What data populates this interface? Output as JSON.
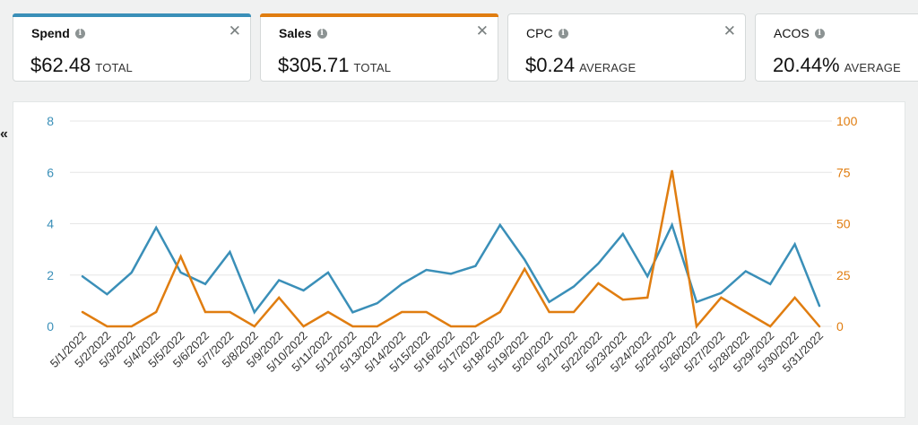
{
  "cards": [
    {
      "label": "Spend",
      "value": "$62.48",
      "qualifier": "TOTAL",
      "accent": "#3a8fb8",
      "bold": true,
      "closable": true
    },
    {
      "label": "Sales",
      "value": "$305.71",
      "qualifier": "TOTAL",
      "accent": "#e07d10",
      "bold": true,
      "closable": true
    },
    {
      "label": "CPC",
      "value": "$0.24",
      "qualifier": "AVERAGE",
      "accent": "",
      "bold": false,
      "closable": true
    },
    {
      "label": "ACOS",
      "value": "20.44%",
      "qualifier": "AVERAGE",
      "accent": "",
      "bold": false,
      "closable": false
    }
  ],
  "info_icon": "info-circle-icon",
  "close_icon": "close-x-icon",
  "collapse_icon": "double-chevron-left-icon",
  "collapse_glyph": "«",
  "chart_data": {
    "type": "line",
    "categories": [
      "5/1/2022",
      "5/2/2022",
      "5/3/2022",
      "5/4/2022",
      "5/5/2022",
      "5/6/2022",
      "5/7/2022",
      "5/8/2022",
      "5/9/2022",
      "5/10/2022",
      "5/11/2022",
      "5/12/2022",
      "5/13/2022",
      "5/14/2022",
      "5/15/2022",
      "5/16/2022",
      "5/17/2022",
      "5/18/2022",
      "5/19/2022",
      "5/20/2022",
      "5/21/2022",
      "5/22/2022",
      "5/23/2022",
      "5/24/2022",
      "5/25/2022",
      "5/26/2022",
      "5/27/2022",
      "5/28/2022",
      "5/29/2022",
      "5/30/2022",
      "5/31/2022"
    ],
    "series": [
      {
        "name": "Spend",
        "axis": "left",
        "color": "#3a8fb8",
        "values": [
          1.95,
          1.25,
          2.1,
          3.85,
          2.1,
          1.65,
          2.9,
          0.55,
          1.8,
          1.4,
          2.1,
          0.55,
          0.9,
          1.65,
          2.2,
          2.05,
          2.35,
          3.95,
          2.6,
          0.95,
          1.55,
          2.45,
          3.6,
          1.95,
          3.95,
          0.95,
          1.3,
          2.15,
          1.65,
          3.2,
          0.8
        ]
      },
      {
        "name": "Sales",
        "axis": "right",
        "color": "#e07d10",
        "values": [
          7,
          0,
          0,
          7,
          34,
          7,
          7,
          0,
          14,
          0,
          7,
          0,
          0,
          7,
          7,
          0,
          0,
          7,
          28,
          7,
          7,
          21,
          13,
          14,
          76,
          0,
          14,
          7,
          0,
          14,
          0
        ]
      }
    ],
    "y_left": {
      "min": 0,
      "max": 8,
      "ticks": [
        "0",
        "2",
        "4",
        "6",
        "8"
      ],
      "color": "#3a8fb8"
    },
    "y_right": {
      "min": 0,
      "max": 100,
      "ticks": [
        "0",
        "25",
        "50",
        "75",
        "100"
      ],
      "color": "#e07d10"
    },
    "grid": true,
    "legend": "none"
  }
}
